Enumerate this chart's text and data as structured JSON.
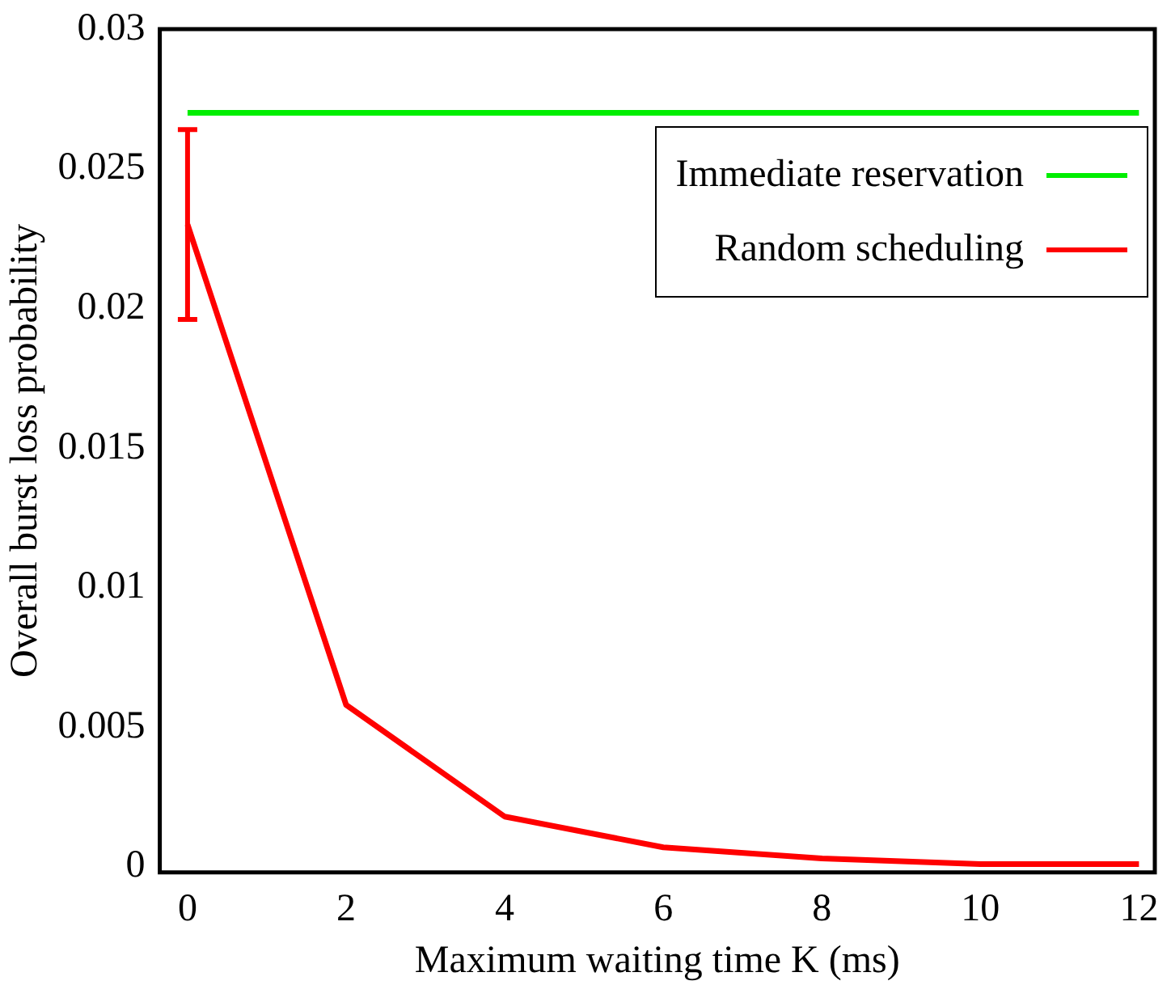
{
  "chart_data": {
    "type": "line",
    "xlabel": "Maximum waiting time K (ms)",
    "ylabel": "Overall burst loss probability",
    "xlim": [
      -0.35,
      12.2
    ],
    "xticks": [
      0,
      2,
      4,
      6,
      8,
      10,
      12
    ],
    "ylim": [
      -0.0002,
      0.03
    ],
    "yticks": [
      0,
      0.005,
      0.01,
      0.015,
      0.02,
      0.025,
      0.03
    ],
    "grid": false,
    "legend": "top right",
    "marker": "none",
    "series": [
      {
        "name": "Immediate reservation",
        "color": "#00ee00",
        "x": [
          0,
          12
        ],
        "values": [
          0.027,
          0.027
        ]
      },
      {
        "name": "Random scheduling",
        "color": "#ff0000",
        "x": [
          0,
          2,
          4,
          6,
          8,
          10,
          12
        ],
        "values": [
          0.023,
          0.0058,
          0.0018,
          0.0007,
          0.0003,
          0.0001,
          0.0001
        ],
        "errors": [
          0.0034,
          null,
          null,
          null,
          null,
          null,
          null
        ]
      }
    ]
  }
}
